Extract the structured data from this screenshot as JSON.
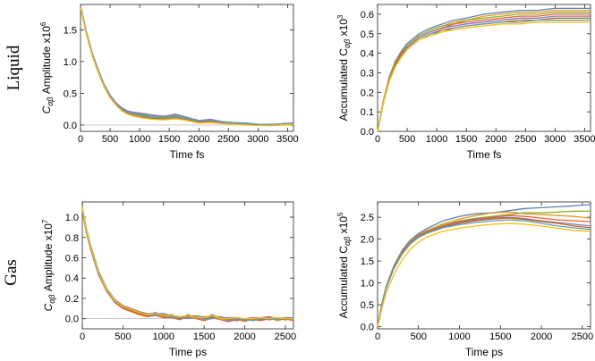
{
  "row_labels": [
    "Liquid",
    "Gas"
  ],
  "palette": [
    "#5e81b5",
    "#e19c24",
    "#8fb032",
    "#eb6235",
    "#8778b3",
    "#c56e1a",
    "#5d9ec7",
    "#ffbf00",
    "#a5609d",
    "#929600",
    "#e95536",
    "#6685d9",
    "#f89f13",
    "#bc5b80",
    "#47b66d"
  ],
  "chart_data": [
    {
      "id": "liquid-amplitude",
      "type": "line",
      "ylabel_main": "C",
      "ylabel_sub": "αβ",
      "ylabel_rest": " Amplitude x10",
      "ylabel_exp": "6",
      "xlabel": "Time fs",
      "xlim": [
        0,
        3600
      ],
      "ylim": [
        -0.1,
        1.9
      ],
      "xticks": [
        0,
        500,
        1000,
        1500,
        2000,
        2500,
        3000,
        3500
      ],
      "xtick_labels": [
        "0",
        "500",
        "1000",
        "1500",
        "2000",
        "2500",
        "3000",
        "3500"
      ],
      "yticks": [
        0.0,
        0.5,
        1.0,
        1.5
      ],
      "ytick_labels": [
        "0.0",
        "0.5",
        "1.0",
        "1.5"
      ],
      "zero_line": true,
      "x": [
        0,
        100,
        200,
        300,
        400,
        500,
        600,
        700,
        800,
        900,
        1000,
        1200,
        1400,
        1600,
        1800,
        2000,
        2200,
        2400,
        2600,
        2800,
        3000,
        3200,
        3400,
        3600
      ],
      "series": [
        {
          "values": [
            1.88,
            1.46,
            1.12,
            0.86,
            0.63,
            0.46,
            0.34,
            0.26,
            0.21,
            0.19,
            0.18,
            0.14,
            0.13,
            0.17,
            0.12,
            0.07,
            0.09,
            0.05,
            0.04,
            0.03,
            0.01,
            0.0,
            0.02,
            0.03
          ]
        },
        {
          "values": [
            1.86,
            1.44,
            1.1,
            0.84,
            0.61,
            0.44,
            0.32,
            0.24,
            0.19,
            0.16,
            0.15,
            0.12,
            0.11,
            0.14,
            0.1,
            0.06,
            0.07,
            0.04,
            0.03,
            0.02,
            0.0,
            0.0,
            0.01,
            0.02
          ]
        },
        {
          "values": [
            1.87,
            1.45,
            1.11,
            0.85,
            0.62,
            0.45,
            0.33,
            0.25,
            0.2,
            0.18,
            0.16,
            0.13,
            0.12,
            0.15,
            0.11,
            0.06,
            0.08,
            0.05,
            0.04,
            0.02,
            0.01,
            -0.01,
            0.01,
            0.02
          ]
        },
        {
          "values": [
            1.85,
            1.43,
            1.09,
            0.83,
            0.6,
            0.43,
            0.31,
            0.23,
            0.17,
            0.14,
            0.12,
            0.1,
            0.09,
            0.11,
            0.08,
            0.04,
            0.05,
            0.03,
            0.02,
            0.01,
            0.0,
            -0.01,
            0.0,
            0.01
          ]
        },
        {
          "values": [
            1.88,
            1.47,
            1.13,
            0.87,
            0.64,
            0.47,
            0.35,
            0.27,
            0.22,
            0.2,
            0.19,
            0.16,
            0.14,
            0.16,
            0.12,
            0.07,
            0.08,
            0.05,
            0.03,
            0.03,
            0.01,
            0.01,
            0.02,
            0.03
          ]
        },
        {
          "values": [
            1.86,
            1.44,
            1.1,
            0.84,
            0.61,
            0.44,
            0.32,
            0.24,
            0.18,
            0.15,
            0.13,
            0.11,
            0.1,
            0.12,
            0.09,
            0.05,
            0.06,
            0.04,
            0.03,
            0.02,
            0.0,
            0.0,
            0.01,
            0.01
          ]
        },
        {
          "values": [
            1.87,
            1.45,
            1.11,
            0.85,
            0.62,
            0.45,
            0.33,
            0.25,
            0.2,
            0.17,
            0.15,
            0.12,
            0.11,
            0.13,
            0.1,
            0.06,
            0.07,
            0.04,
            0.03,
            0.02,
            0.01,
            0.0,
            0.01,
            0.02
          ]
        },
        {
          "values": [
            1.85,
            1.43,
            1.09,
            0.83,
            0.6,
            0.43,
            0.31,
            0.22,
            0.17,
            0.14,
            0.12,
            0.09,
            0.08,
            0.1,
            0.07,
            0.03,
            0.04,
            0.02,
            0.01,
            0.0,
            -0.01,
            -0.01,
            0.0,
            0.01
          ]
        }
      ]
    },
    {
      "id": "liquid-accumulated",
      "type": "line",
      "ylabel_main": "Accumulated C",
      "ylabel_sub": "αβ",
      "ylabel_rest": " x10",
      "ylabel_exp": "3",
      "xlabel": "Time fs",
      "xlim": [
        0,
        3600
      ],
      "ylim": [
        0.0,
        0.65
      ],
      "xticks": [
        0,
        500,
        1000,
        1500,
        2000,
        2500,
        3000,
        3500
      ],
      "xtick_labels": [
        "0",
        "500",
        "1000",
        "1500",
        "2000",
        "2500",
        "3000",
        "3500"
      ],
      "yticks": [
        0.0,
        0.1,
        0.2,
        0.3,
        0.4,
        0.5,
        0.6
      ],
      "ytick_labels": [
        "0.0",
        "0.1",
        "0.2",
        "0.3",
        "0.4",
        "0.5",
        "0.6"
      ],
      "zero_line": false,
      "x": [
        0,
        100,
        200,
        300,
        400,
        500,
        700,
        900,
        1100,
        1300,
        1500,
        1800,
        2100,
        2400,
        2700,
        3000,
        3300,
        3600
      ],
      "series": [
        {
          "values": [
            0.0,
            0.16,
            0.28,
            0.36,
            0.41,
            0.45,
            0.5,
            0.53,
            0.55,
            0.57,
            0.58,
            0.6,
            0.61,
            0.62,
            0.62,
            0.63,
            0.63,
            0.63
          ]
        },
        {
          "values": [
            0.0,
            0.16,
            0.27,
            0.35,
            0.4,
            0.44,
            0.49,
            0.52,
            0.54,
            0.56,
            0.57,
            0.59,
            0.6,
            0.61,
            0.61,
            0.62,
            0.62,
            0.62
          ]
        },
        {
          "values": [
            0.0,
            0.16,
            0.27,
            0.35,
            0.4,
            0.44,
            0.49,
            0.52,
            0.54,
            0.55,
            0.57,
            0.58,
            0.59,
            0.6,
            0.6,
            0.61,
            0.61,
            0.61
          ]
        },
        {
          "values": [
            0.0,
            0.15,
            0.27,
            0.34,
            0.4,
            0.43,
            0.48,
            0.51,
            0.53,
            0.55,
            0.56,
            0.57,
            0.58,
            0.59,
            0.59,
            0.6,
            0.6,
            0.6
          ]
        },
        {
          "values": [
            0.0,
            0.15,
            0.26,
            0.34,
            0.39,
            0.43,
            0.48,
            0.51,
            0.53,
            0.54,
            0.55,
            0.56,
            0.57,
            0.58,
            0.58,
            0.59,
            0.59,
            0.59
          ]
        },
        {
          "values": [
            0.0,
            0.15,
            0.26,
            0.34,
            0.39,
            0.42,
            0.47,
            0.5,
            0.52,
            0.53,
            0.54,
            0.55,
            0.56,
            0.57,
            0.57,
            0.58,
            0.58,
            0.58
          ]
        },
        {
          "values": [
            0.0,
            0.15,
            0.26,
            0.33,
            0.38,
            0.42,
            0.47,
            0.5,
            0.51,
            0.53,
            0.54,
            0.55,
            0.56,
            0.56,
            0.57,
            0.57,
            0.57,
            0.57
          ]
        },
        {
          "values": [
            0.0,
            0.15,
            0.26,
            0.33,
            0.38,
            0.42,
            0.47,
            0.49,
            0.51,
            0.52,
            0.53,
            0.54,
            0.55,
            0.55,
            0.56,
            0.56,
            0.56,
            0.56
          ]
        }
      ]
    },
    {
      "id": "gas-amplitude",
      "type": "line",
      "ylabel_main": "C",
      "ylabel_sub": "αβ",
      "ylabel_rest": " Amplitude x10",
      "ylabel_exp": "7",
      "xlabel": "Time ps",
      "xlim": [
        0,
        2600
      ],
      "ylim": [
        -0.1,
        1.15
      ],
      "xticks": [
        0,
        500,
        1000,
        1500,
        2000,
        2500
      ],
      "xtick_labels": [
        "0",
        "500",
        "1000",
        "1500",
        "2000",
        "2500"
      ],
      "yticks": [
        0.0,
        0.2,
        0.4,
        0.6,
        0.8,
        1.0
      ],
      "ytick_labels": [
        "0.0",
        "0.2",
        "0.4",
        "0.6",
        "0.8",
        "1.0"
      ],
      "zero_line": true,
      "x": [
        0,
        50,
        100,
        200,
        300,
        400,
        500,
        600,
        700,
        800,
        900,
        1000,
        1100,
        1200,
        1300,
        1400,
        1500,
        1600,
        1700,
        1800,
        1900,
        2000,
        2100,
        2200,
        2300,
        2400,
        2500,
        2600
      ],
      "series": [
        {
          "values": [
            1.1,
            0.88,
            0.72,
            0.46,
            0.29,
            0.18,
            0.12,
            0.09,
            0.06,
            0.04,
            0.06,
            0.03,
            0.04,
            0.0,
            0.04,
            0.01,
            0.0,
            0.04,
            0.0,
            -0.01,
            -0.02,
            0.0,
            -0.02,
            0.0,
            -0.01,
            0.0,
            0.01,
            0.0
          ]
        },
        {
          "values": [
            1.08,
            0.86,
            0.7,
            0.44,
            0.28,
            0.17,
            0.11,
            0.08,
            0.05,
            0.03,
            0.05,
            0.02,
            0.02,
            0.01,
            0.03,
            0.02,
            -0.01,
            0.03,
            0.01,
            -0.02,
            0.0,
            -0.03,
            0.0,
            -0.01,
            0.01,
            -0.02,
            0.0,
            -0.01
          ]
        },
        {
          "values": [
            1.09,
            0.87,
            0.71,
            0.45,
            0.29,
            0.18,
            0.12,
            0.1,
            0.07,
            0.05,
            0.04,
            0.04,
            0.03,
            0.02,
            0.02,
            0.03,
            0.01,
            0.02,
            0.02,
            0.0,
            0.01,
            -0.01,
            0.01,
            0.0,
            0.0,
            0.01,
            -0.01,
            0.0
          ]
        },
        {
          "values": [
            1.07,
            0.85,
            0.69,
            0.43,
            0.27,
            0.16,
            0.1,
            0.07,
            0.04,
            0.02,
            0.03,
            0.01,
            0.01,
            -0.01,
            0.02,
            0.0,
            -0.02,
            0.01,
            -0.01,
            -0.03,
            -0.01,
            -0.02,
            -0.01,
            -0.02,
            0.0,
            -0.01,
            0.0,
            -0.02
          ]
        },
        {
          "values": [
            1.1,
            0.89,
            0.73,
            0.47,
            0.3,
            0.19,
            0.13,
            0.1,
            0.07,
            0.05,
            0.05,
            0.05,
            0.03,
            0.02,
            0.03,
            0.02,
            0.02,
            0.02,
            0.01,
            0.01,
            0.01,
            0.0,
            0.01,
            0.01,
            0.02,
            0.0,
            0.01,
            0.01
          ]
        },
        {
          "values": [
            1.09,
            0.87,
            0.71,
            0.45,
            0.28,
            0.17,
            0.11,
            0.08,
            0.05,
            0.03,
            0.04,
            0.02,
            0.02,
            0.0,
            0.01,
            0.01,
            0.0,
            0.01,
            0.0,
            -0.01,
            0.0,
            -0.01,
            0.0,
            -0.01,
            0.01,
            0.0,
            -0.01,
            0.0
          ]
        },
        {
          "values": [
            1.08,
            0.86,
            0.7,
            0.44,
            0.28,
            0.17,
            0.12,
            0.09,
            0.06,
            0.04,
            0.03,
            0.03,
            0.01,
            0.01,
            0.0,
            0.02,
            -0.01,
            0.0,
            0.01,
            -0.02,
            0.0,
            -0.01,
            -0.02,
            0.0,
            0.0,
            -0.01,
            0.01,
            -0.01
          ]
        },
        {
          "values": [
            1.1,
            0.88,
            0.72,
            0.46,
            0.29,
            0.18,
            0.12,
            0.09,
            0.06,
            0.04,
            0.05,
            0.03,
            0.03,
            0.02,
            0.03,
            0.01,
            0.01,
            0.03,
            0.0,
            0.0,
            0.01,
            0.0,
            0.0,
            0.01,
            0.0,
            0.01,
            0.0,
            0.0
          ]
        }
      ]
    },
    {
      "id": "gas-accumulated",
      "type": "line",
      "ylabel_main": "Accumulated C",
      "ylabel_sub": "αβ",
      "ylabel_rest": " x10",
      "ylabel_exp": "5",
      "xlabel": "Time ps",
      "xlim": [
        0,
        2600
      ],
      "ylim": [
        -0.05,
        2.85
      ],
      "xticks": [
        0,
        500,
        1000,
        1500,
        2000,
        2500
      ],
      "xtick_labels": [
        "0",
        "500",
        "1000",
        "1500",
        "2000",
        "2500"
      ],
      "yticks": [
        0.0,
        0.5,
        1.0,
        1.5,
        2.0,
        2.5
      ],
      "ytick_labels": [
        "0.0",
        "0.5",
        "1.0",
        "1.5",
        "2.0",
        "2.5"
      ],
      "zero_line": false,
      "x": [
        0,
        50,
        100,
        200,
        300,
        400,
        500,
        600,
        800,
        1000,
        1200,
        1400,
        1600,
        1800,
        2000,
        2200,
        2400,
        2600
      ],
      "series": [
        {
          "values": [
            0.0,
            0.5,
            0.9,
            1.4,
            1.75,
            1.98,
            2.13,
            2.24,
            2.42,
            2.52,
            2.58,
            2.6,
            2.65,
            2.7,
            2.72,
            2.74,
            2.76,
            2.79
          ]
        },
        {
          "values": [
            0.0,
            0.48,
            0.88,
            1.38,
            1.72,
            1.95,
            2.1,
            2.2,
            2.35,
            2.46,
            2.54,
            2.6,
            2.62,
            2.58,
            2.56,
            2.54,
            2.52,
            2.48
          ]
        },
        {
          "values": [
            0.0,
            0.48,
            0.88,
            1.37,
            1.71,
            1.94,
            2.09,
            2.18,
            2.32,
            2.42,
            2.48,
            2.52,
            2.56,
            2.6,
            2.6,
            2.62,
            2.64,
            2.64
          ]
        },
        {
          "values": [
            0.0,
            0.47,
            0.87,
            1.36,
            1.7,
            1.93,
            2.08,
            2.17,
            2.3,
            2.4,
            2.46,
            2.5,
            2.54,
            2.52,
            2.48,
            2.44,
            2.42,
            2.4
          ]
        },
        {
          "values": [
            0.0,
            0.47,
            0.86,
            1.35,
            1.69,
            1.92,
            2.07,
            2.16,
            2.29,
            2.38,
            2.44,
            2.48,
            2.5,
            2.47,
            2.42,
            2.38,
            2.34,
            2.3
          ]
        },
        {
          "values": [
            0.0,
            0.46,
            0.86,
            1.34,
            1.68,
            1.91,
            2.06,
            2.15,
            2.28,
            2.36,
            2.42,
            2.46,
            2.48,
            2.45,
            2.4,
            2.36,
            2.3,
            2.26
          ]
        },
        {
          "values": [
            0.0,
            0.45,
            0.85,
            1.33,
            1.66,
            1.89,
            2.04,
            2.13,
            2.26,
            2.33,
            2.38,
            2.42,
            2.44,
            2.42,
            2.36,
            2.3,
            2.26,
            2.22
          ]
        },
        {
          "values": [
            0.0,
            0.4,
            0.75,
            1.2,
            1.53,
            1.77,
            1.93,
            2.05,
            2.18,
            2.25,
            2.3,
            2.34,
            2.36,
            2.34,
            2.3,
            2.25,
            2.2,
            2.18
          ]
        }
      ]
    }
  ]
}
